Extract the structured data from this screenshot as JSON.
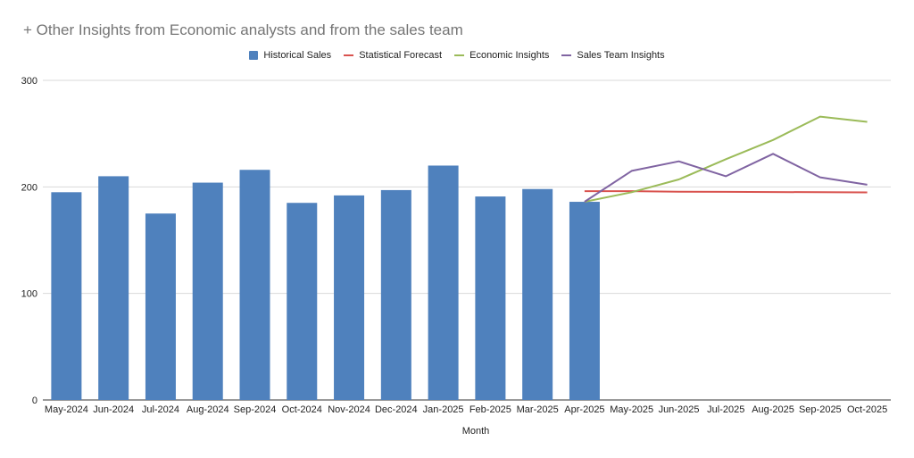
{
  "chart_data": {
    "type": "bar",
    "title": "+ Other Insights from Economic analysts and from the sales team",
    "xlabel": "Month",
    "ylabel": "",
    "ylim": [
      0,
      300
    ],
    "yticks": [
      0,
      100,
      200,
      300
    ],
    "grid": true,
    "legend_position": "top-center",
    "categories": [
      "May-2024",
      "Jun-2024",
      "Jul-2024",
      "Aug-2024",
      "Sep-2024",
      "Oct-2024",
      "Nov-2024",
      "Dec-2024",
      "Jan-2025",
      "Feb-2025",
      "Mar-2025",
      "Apr-2025",
      "May-2025",
      "Jun-2025",
      "Jul-2025",
      "Aug-2025",
      "Sep-2025",
      "Oct-2025"
    ],
    "series": [
      {
        "name": "Historical Sales",
        "type": "bar",
        "color": "#4f81bd",
        "values": [
          195,
          210,
          175,
          204,
          216,
          185,
          192,
          197,
          220,
          191,
          198,
          186,
          null,
          null,
          null,
          null,
          null,
          null
        ]
      },
      {
        "name": "Statistical Forecast",
        "type": "line",
        "color": "#d9534f",
        "values": [
          null,
          null,
          null,
          null,
          null,
          null,
          null,
          null,
          null,
          null,
          null,
          196,
          196,
          195.5,
          195.3,
          195.2,
          195,
          194.8
        ]
      },
      {
        "name": "Economic Insights",
        "type": "line",
        "color": "#9bbb59",
        "values": [
          null,
          null,
          null,
          null,
          null,
          null,
          null,
          null,
          null,
          null,
          null,
          186,
          195,
          207,
          226,
          244,
          266,
          261
        ]
      },
      {
        "name": "Sales Team Insights",
        "type": "line",
        "color": "#8064a2",
        "values": [
          null,
          null,
          null,
          null,
          null,
          null,
          null,
          null,
          null,
          null,
          null,
          186,
          215,
          224,
          210,
          231,
          209,
          202
        ]
      }
    ]
  }
}
